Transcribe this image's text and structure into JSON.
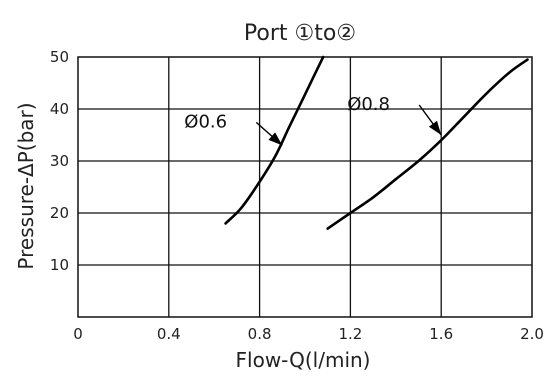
{
  "chart_data": {
    "type": "line",
    "title": "Port ①to②",
    "xlabel": "Flow-Q(l/min)",
    "ylabel": "Pressure-ΔP(bar)",
    "xlim": [
      0,
      2.0
    ],
    "ylim": [
      0,
      50
    ],
    "x_ticks": [
      "0",
      "0.4",
      "0.8",
      "1.2",
      "1.6",
      "2.0"
    ],
    "y_ticks": [
      "10",
      "20",
      "30",
      "40",
      "50"
    ],
    "grid": true,
    "series": [
      {
        "name": "Ø0.6",
        "x": [
          0.65,
          0.72,
          0.8,
          0.87,
          0.93,
          0.98,
          1.03,
          1.08
        ],
        "y": [
          18,
          21,
          26,
          31,
          36.5,
          41,
          45.5,
          50
        ]
      },
      {
        "name": "Ø0.8",
        "x": [
          1.1,
          1.2,
          1.3,
          1.4,
          1.5,
          1.6,
          1.7,
          1.8,
          1.9,
          1.98
        ],
        "y": [
          17,
          20,
          23,
          26.5,
          30,
          34,
          38.5,
          43,
          47,
          49.5
        ]
      }
    ],
    "annotations": [
      {
        "text": "Ø0.6",
        "series": 0,
        "x": 0.9,
        "y": 33
      },
      {
        "text": "Ø0.8",
        "series": 1,
        "x": 1.6,
        "y": 35
      }
    ]
  }
}
